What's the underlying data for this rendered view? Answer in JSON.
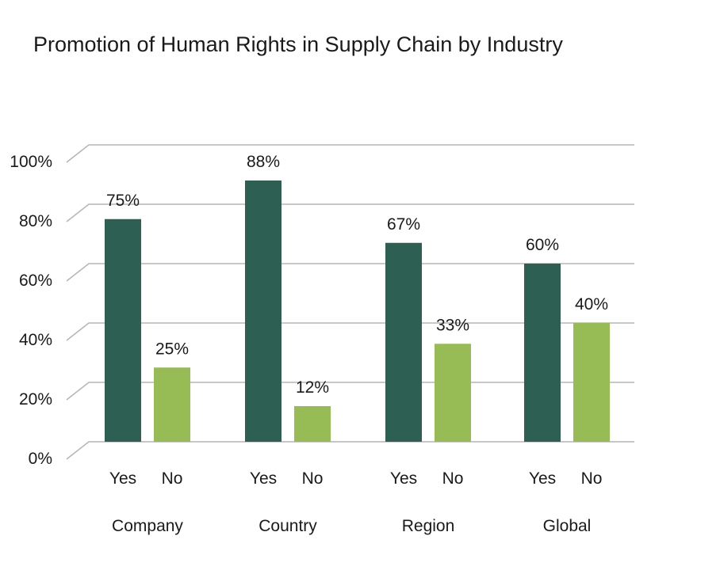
{
  "chart_data": {
    "type": "bar",
    "title": "Promotion of Human Rights in Supply Chain by Industry",
    "groups": [
      {
        "name": "Company",
        "bars": [
          {
            "label": "Yes",
            "value": 75,
            "value_label": "75%"
          },
          {
            "label": "No",
            "value": 25,
            "value_label": "25%"
          }
        ]
      },
      {
        "name": "Country",
        "bars": [
          {
            "label": "Yes",
            "value": 88,
            "value_label": "88%"
          },
          {
            "label": "No",
            "value": 12,
            "value_label": "12%"
          }
        ]
      },
      {
        "name": "Region",
        "bars": [
          {
            "label": "Yes",
            "value": 67,
            "value_label": "67%"
          },
          {
            "label": "No",
            "value": 33,
            "value_label": "33%"
          }
        ]
      },
      {
        "name": "Global",
        "bars": [
          {
            "label": "Yes",
            "value": 60,
            "value_label": "60%"
          },
          {
            "label": "No",
            "value": 40,
            "value_label": "40%"
          }
        ]
      }
    ],
    "yticks": [
      "0%",
      "20%",
      "40%",
      "60%",
      "80%",
      "100%"
    ],
    "ytick_values": [
      0,
      20,
      40,
      60,
      80,
      100
    ],
    "ylim": [
      0,
      100
    ],
    "xlabel": "",
    "ylabel": "",
    "grid": true,
    "colors": {
      "Yes": "#2d6053",
      "No": "#98bc55"
    }
  }
}
